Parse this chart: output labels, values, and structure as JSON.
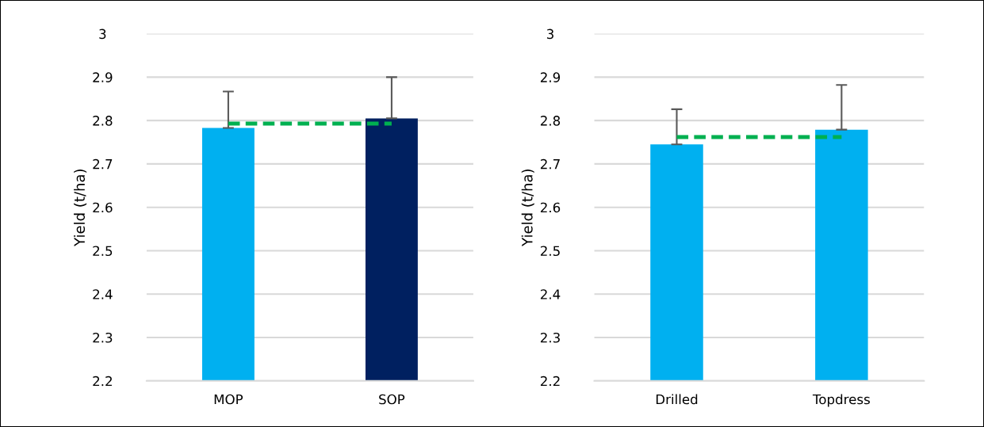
{
  "chart_data": [
    {
      "type": "bar",
      "categories": [
        "MOP",
        "SOP"
      ],
      "values": [
        2.783,
        2.805
      ],
      "colors": [
        "#00b0f0",
        "#002060"
      ],
      "errors": [
        [
          2.783,
          2.867
        ],
        [
          2.805,
          2.9
        ]
      ],
      "ylabel": "Yield (t/ha)",
      "ylim": [
        2.2,
        3
      ],
      "yticks": [
        2.2,
        2.3,
        2.4,
        2.5,
        2.6,
        2.7,
        2.8,
        2.9,
        3
      ],
      "grid": "y",
      "ref_lines": [
        {
          "axis": "y",
          "value": 2.793,
          "color": "#00b050",
          "line_style": "dashed"
        }
      ]
    },
    {
      "type": "bar",
      "categories": [
        "Drilled",
        "Topdress"
      ],
      "values": [
        2.745,
        2.779
      ],
      "colors": [
        "#00b0f0",
        "#00b0f0"
      ],
      "errors": [
        [
          2.745,
          2.826
        ],
        [
          2.779,
          2.882
        ]
      ],
      "ylabel": "Yield (t/ha)",
      "ylim": [
        2.2,
        3
      ],
      "yticks": [
        2.2,
        2.3,
        2.4,
        2.5,
        2.6,
        2.7,
        2.8,
        2.9,
        3
      ],
      "grid": "y",
      "ref_lines": [
        {
          "axis": "y",
          "value": 2.762,
          "color": "#00b050",
          "line_style": "dashed"
        }
      ]
    }
  ]
}
